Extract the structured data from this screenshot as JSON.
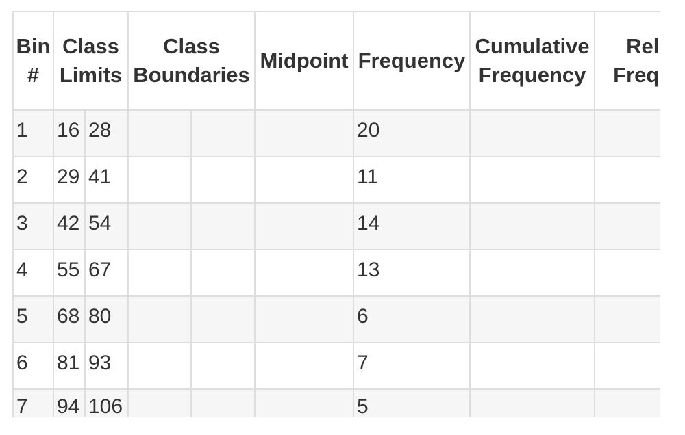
{
  "table": {
    "headers": {
      "bin": [
        "Bin",
        "#"
      ],
      "class_limits": [
        "Class",
        "Limits"
      ],
      "class_boundaries": [
        "Class",
        "Boundaries"
      ],
      "midpoint": "Midpoint",
      "frequency": "Frequency",
      "cumulative_frequency": [
        "Cumulative",
        "Frequency"
      ],
      "relative_frequency": [
        "Relative",
        "Frequency"
      ]
    },
    "rows": [
      {
        "bin": "1",
        "lower": "16",
        "upper": "28",
        "frequency": "20"
      },
      {
        "bin": "2",
        "lower": "29",
        "upper": "41",
        "frequency": "11"
      },
      {
        "bin": "3",
        "lower": "42",
        "upper": "54",
        "frequency": "14"
      },
      {
        "bin": "4",
        "lower": "55",
        "upper": "67",
        "frequency": "13"
      },
      {
        "bin": "5",
        "lower": "68",
        "upper": "80",
        "frequency": "6"
      },
      {
        "bin": "6",
        "lower": "81",
        "upper": "93",
        "frequency": "7"
      },
      {
        "bin": "7",
        "lower": "94",
        "upper": "106",
        "frequency": "5"
      }
    ]
  }
}
